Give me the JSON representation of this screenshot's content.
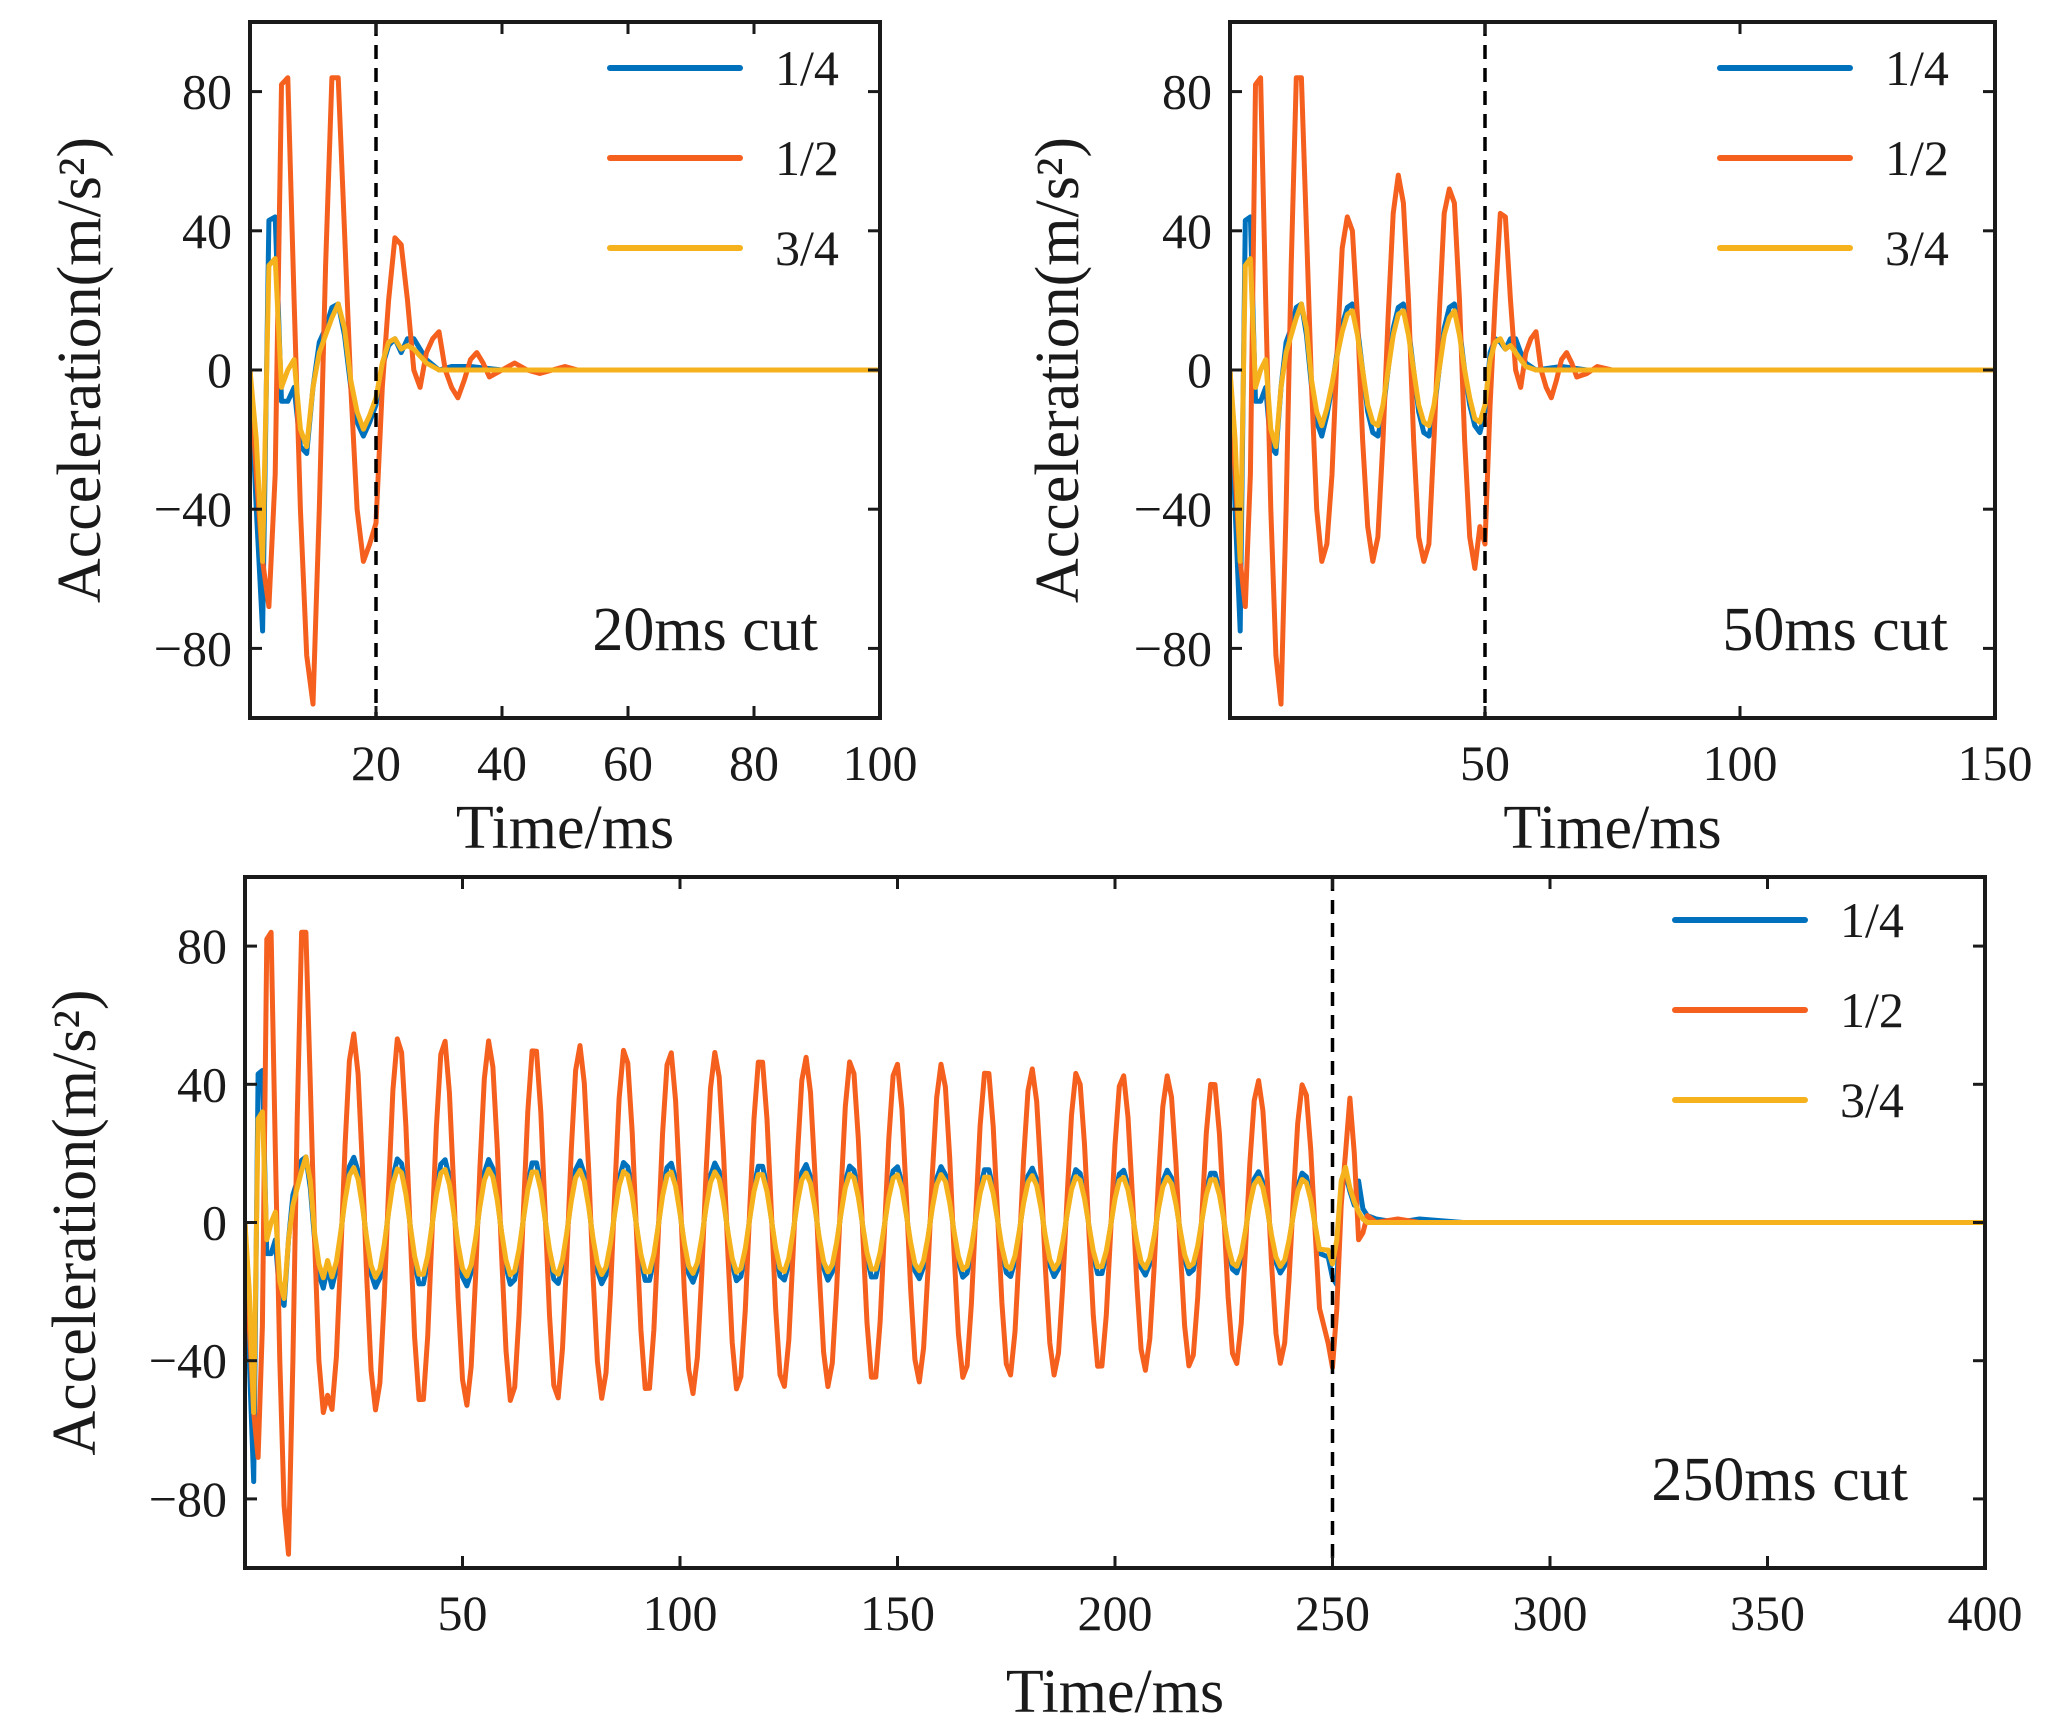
{
  "figure": {
    "series_colors": {
      "1/4": "#0072BD",
      "1/2": "#F5601E",
      "3/4": "#F5B21C"
    },
    "cut_line_color": "#000000"
  },
  "chart_data": [
    {
      "type": "line",
      "id": "panel-20ms",
      "annotation": "20ms cut",
      "xlabel": "Time/ms",
      "ylabel": "Acceleration(m/s²)",
      "xlim": [
        0,
        100
      ],
      "ylim": [
        -100,
        100
      ],
      "xticks": [
        20,
        40,
        60,
        80,
        100
      ],
      "yticks": [
        -80,
        -40,
        0,
        40,
        80
      ],
      "cut_time": 20,
      "legend": [
        "1/4",
        "1/2",
        "3/4"
      ],
      "series": [
        {
          "name": "1/4",
          "x": [
            0,
            1,
            2,
            3,
            4,
            5,
            6,
            7,
            8,
            9,
            10,
            11,
            12,
            13,
            14,
            15,
            16,
            17,
            18,
            19,
            20,
            21,
            22,
            23,
            24,
            25,
            26,
            27,
            28,
            30,
            32,
            35,
            40,
            50,
            60,
            80,
            100
          ],
          "y": [
            0,
            -40,
            -75,
            43,
            44,
            -9,
            -9,
            -5,
            -22,
            -24,
            -5,
            8,
            12,
            18,
            19,
            10,
            -5,
            -15,
            -19,
            -15,
            -10,
            1,
            7,
            9,
            5,
            9,
            9,
            6,
            3,
            0,
            1,
            1,
            0,
            0,
            0,
            0,
            0
          ]
        },
        {
          "name": "1/2",
          "x": [
            0,
            1,
            2,
            3,
            4,
            5,
            6,
            7,
            8,
            9,
            10,
            11,
            12,
            13,
            14,
            15,
            16,
            17,
            18,
            19,
            20,
            21,
            22,
            23,
            24,
            25,
            26,
            27,
            28,
            29,
            30,
            31,
            32,
            33,
            34,
            35,
            36,
            37,
            38,
            39,
            40,
            42,
            44,
            46,
            48,
            50,
            52,
            55,
            60,
            70,
            80,
            100
          ],
          "y": [
            0,
            -30,
            -55,
            -68,
            -30,
            82,
            84,
            20,
            -40,
            -82,
            -96,
            -40,
            30,
            84,
            84,
            40,
            -5,
            -40,
            -55,
            -50,
            -44,
            -5,
            20,
            38,
            36,
            20,
            0,
            -5,
            5,
            9,
            11,
            0,
            -5,
            -8,
            -3,
            3,
            5,
            2,
            -2,
            -1,
            0,
            2,
            0,
            -1,
            0,
            1,
            0,
            0,
            0,
            0,
            0,
            0
          ]
        },
        {
          "name": "3/4",
          "x": [
            0,
            1,
            2,
            3,
            4,
            5,
            6,
            7,
            8,
            9,
            10,
            11,
            12,
            13,
            14,
            15,
            16,
            17,
            18,
            19,
            20,
            21,
            22,
            23,
            24,
            25,
            26,
            27,
            28,
            30,
            32,
            35,
            40,
            50,
            60,
            80,
            100
          ],
          "y": [
            0,
            -20,
            -55,
            30,
            32,
            -5,
            0,
            3,
            -17,
            -22,
            -5,
            5,
            10,
            15,
            19,
            12,
            -3,
            -12,
            -17,
            -13,
            -8,
            2,
            8,
            9,
            6,
            7,
            6,
            4,
            2,
            0,
            0,
            0,
            0,
            0,
            0,
            0,
            0
          ]
        }
      ]
    },
    {
      "type": "line",
      "id": "panel-50ms",
      "annotation": "50ms cut",
      "xlabel": "Time/ms",
      "ylabel": "Acceleration(m/s²)",
      "xlim": [
        0,
        150
      ],
      "ylim": [
        -100,
        100
      ],
      "xticks": [
        50,
        100,
        150
      ],
      "yticks": [
        -80,
        -40,
        0,
        40,
        80
      ],
      "cut_time": 50,
      "legend": [
        "1/4",
        "1/2",
        "3/4"
      ],
      "series": [
        {
          "name": "1/4",
          "x": [
            0,
            1,
            2,
            3,
            4,
            5,
            6,
            7,
            8,
            9,
            10,
            11,
            12,
            13,
            14,
            15,
            16,
            17,
            18,
            19,
            20,
            21,
            22,
            23,
            24,
            25,
            26,
            27,
            28,
            29,
            30,
            31,
            32,
            33,
            34,
            35,
            36,
            37,
            38,
            39,
            40,
            41,
            42,
            43,
            44,
            45,
            46,
            47,
            48,
            49,
            50,
            51,
            52,
            53,
            54,
            55,
            56,
            57,
            58,
            60,
            65,
            70,
            80,
            100,
            150
          ],
          "y": [
            0,
            -40,
            -75,
            43,
            44,
            -9,
            -9,
            -5,
            -22,
            -24,
            -5,
            8,
            12,
            18,
            19,
            10,
            -5,
            -15,
            -19,
            -13,
            -5,
            5,
            13,
            18,
            19,
            12,
            0,
            -12,
            -18,
            -19,
            -12,
            0,
            12,
            18,
            19,
            12,
            0,
            -12,
            -18,
            -19,
            -12,
            0,
            12,
            18,
            19,
            12,
            0,
            -10,
            -16,
            -18,
            -12,
            5,
            9,
            8,
            6,
            9,
            9,
            5,
            2,
            0,
            1,
            0,
            0,
            0,
            0
          ]
        },
        {
          "name": "1/2",
          "x": [
            0,
            1,
            2,
            3,
            4,
            5,
            6,
            7,
            8,
            9,
            10,
            11,
            12,
            13,
            14,
            15,
            16,
            17,
            18,
            19,
            20,
            21,
            22,
            23,
            24,
            25,
            26,
            27,
            28,
            29,
            30,
            31,
            32,
            33,
            34,
            35,
            36,
            37,
            38,
            39,
            40,
            41,
            42,
            43,
            44,
            45,
            46,
            47,
            48,
            49,
            50,
            51,
            52,
            53,
            54,
            55,
            56,
            57,
            58,
            59,
            60,
            61,
            62,
            63,
            64,
            65,
            66,
            67,
            68,
            70,
            72,
            75,
            80,
            90,
            100,
            150
          ],
          "y": [
            0,
            -30,
            -55,
            -68,
            -30,
            82,
            84,
            20,
            -40,
            -82,
            -96,
            -40,
            30,
            84,
            84,
            40,
            -5,
            -40,
            -55,
            -50,
            -30,
            5,
            35,
            44,
            40,
            15,
            -20,
            -45,
            -55,
            -48,
            -20,
            15,
            45,
            56,
            48,
            20,
            -20,
            -48,
            -55,
            -50,
            -20,
            15,
            45,
            52,
            48,
            20,
            -20,
            -48,
            -57,
            -45,
            -50,
            -10,
            20,
            45,
            44,
            20,
            0,
            -5,
            5,
            9,
            11,
            0,
            -5,
            -8,
            -3,
            3,
            5,
            2,
            -2,
            -1,
            1,
            0,
            0,
            0,
            0,
            0
          ]
        },
        {
          "name": "3/4",
          "x": [
            0,
            1,
            2,
            3,
            4,
            5,
            6,
            7,
            8,
            9,
            10,
            11,
            12,
            13,
            14,
            15,
            16,
            17,
            18,
            19,
            20,
            21,
            22,
            23,
            24,
            25,
            26,
            27,
            28,
            29,
            30,
            31,
            32,
            33,
            34,
            35,
            36,
            37,
            38,
            39,
            40,
            41,
            42,
            43,
            44,
            45,
            46,
            47,
            48,
            49,
            50,
            51,
            52,
            53,
            54,
            55,
            56,
            57,
            58,
            60,
            65,
            70,
            80,
            100,
            150
          ],
          "y": [
            0,
            -20,
            -55,
            30,
            32,
            -5,
            0,
            3,
            -17,
            -22,
            -5,
            5,
            10,
            15,
            19,
            12,
            -3,
            -12,
            -16,
            -11,
            -4,
            4,
            11,
            16,
            17,
            10,
            0,
            -10,
            -15,
            -16,
            -10,
            0,
            10,
            16,
            17,
            10,
            0,
            -10,
            -15,
            -16,
            -10,
            0,
            10,
            15,
            17,
            10,
            0,
            -8,
            -14,
            -15,
            -10,
            3,
            8,
            9,
            6,
            7,
            5,
            3,
            1,
            0,
            0,
            0,
            0,
            0,
            0
          ]
        }
      ]
    },
    {
      "type": "line",
      "id": "panel-250ms",
      "annotation": "250ms cut",
      "xlabel": "Time/ms",
      "ylabel": "Acceleration(m/s²)",
      "xlim": [
        0,
        400
      ],
      "ylim": [
        -100,
        100
      ],
      "xticks": [
        50,
        100,
        150,
        200,
        250,
        300,
        350,
        400
      ],
      "yticks": [
        -80,
        -40,
        0,
        40,
        80
      ],
      "cut_time": 250,
      "legend": [
        "1/4",
        "1/2",
        "3/4"
      ],
      "oscillation": {
        "period_ms": 10.4,
        "start_ms": 20,
        "stop_ms": 248
      }
    }
  ]
}
